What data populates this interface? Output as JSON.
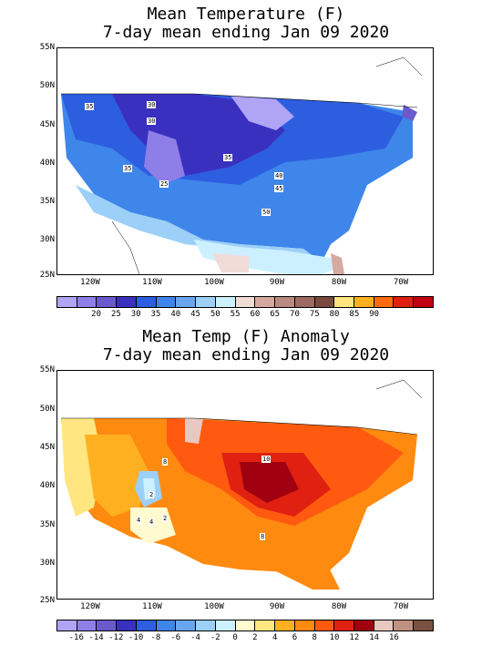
{
  "panel1": {
    "title_line1": "Mean Temperature (F)",
    "title_line2": "7-day mean ending Jan 09 2020",
    "lat_labels": [
      "55N",
      "50N",
      "45N",
      "40N",
      "35N",
      "30N",
      "25N"
    ],
    "lon_labels": [
      "120W",
      "110W",
      "100W",
      "90W",
      "80W",
      "70W"
    ],
    "legend_ticks": [
      "20",
      "25",
      "30",
      "35",
      "40",
      "45",
      "50",
      "55",
      "60",
      "65",
      "70",
      "75",
      "80",
      "85",
      "90"
    ],
    "legend_colors": [
      "#b0a4f5",
      "#8e7ee8",
      "#6a5acd",
      "#3a30c0",
      "#2d5ee0",
      "#3f86ea",
      "#6aa6f0",
      "#9cd0f8",
      "#ccf0ff",
      "#f0dcd6",
      "#d4aaa0",
      "#b88a80",
      "#9c6a60",
      "#7a4a40",
      "#ffe680",
      "#ffb020",
      "#ff6a10",
      "#e02010",
      "#c00010"
    ],
    "map_labels": [
      "35",
      "30",
      "30",
      "35",
      "25",
      "35",
      "40",
      "45",
      "50"
    ]
  },
  "panel2": {
    "title_line1": "Mean Temp (F) Anomaly",
    "title_line2": "7-day mean ending Jan 09 2020",
    "lat_labels": [
      "55N",
      "50N",
      "45N",
      "40N",
      "35N",
      "30N",
      "25N"
    ],
    "lon_labels": [
      "120W",
      "110W",
      "100W",
      "90W",
      "80W",
      "70W"
    ],
    "legend_ticks": [
      "-16",
      "-14",
      "-12",
      "-10",
      "-8",
      "-6",
      "-4",
      "-2",
      "0",
      "2",
      "4",
      "6",
      "8",
      "10",
      "12",
      "14",
      "16"
    ],
    "legend_colors": [
      "#b0a4f5",
      "#8e7ee8",
      "#6a5acd",
      "#3a30c0",
      "#2d5ee0",
      "#3f86ea",
      "#6aa6f0",
      "#9cd0f8",
      "#ccf0ff",
      "#fffad0",
      "#ffe680",
      "#ffb020",
      "#ff8a10",
      "#ff5a10",
      "#e02010",
      "#a00010",
      "#e8c8c0",
      "#c09080",
      "#7a5040"
    ],
    "map_labels": [
      "8",
      "10",
      "2",
      "4",
      "4",
      "2",
      "8"
    ]
  }
}
